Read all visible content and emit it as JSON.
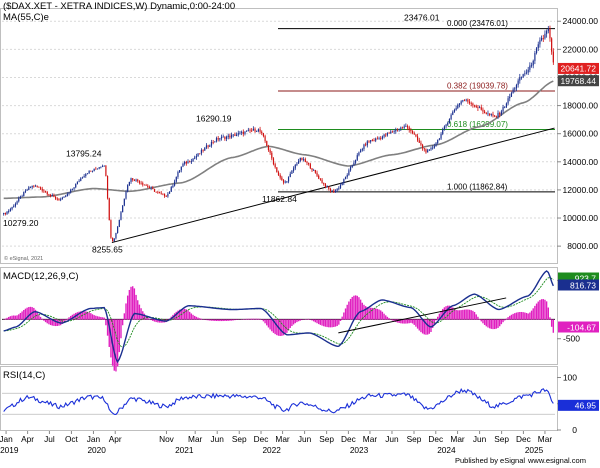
{
  "header": {
    "title": "($DAX.XET - XETRA INDICES,W) Dynamic,0:00-24:00",
    "ma_label": "MA(55,C)e"
  },
  "chart_data": [
    {
      "type": "candlestick",
      "panel": "price",
      "ylim": [
        6800,
        24800
      ],
      "yticks": [
        "8000.00",
        "10000.00",
        "12000.00",
        "14000.00",
        "16000.00",
        "18000.00",
        "20000.00",
        "22000.00",
        "24000.00"
      ],
      "ytick_values": [
        8000,
        10000,
        12000,
        14000,
        16000,
        18000,
        20000,
        22000,
        24000
      ],
      "price_anchors": [
        {
          "date": "2018-12-20",
          "value": 10279
        },
        {
          "date": "2019-04-25",
          "value": 12300
        },
        {
          "date": "2019-08-15",
          "value": 11300
        },
        {
          "date": "2019-12-15",
          "value": 13300
        },
        {
          "date": "2020-02-15",
          "value": 13795
        },
        {
          "date": "2020-03-18",
          "value": 8255
        },
        {
          "date": "2020-06-05",
          "value": 12800
        },
        {
          "date": "2020-10-30",
          "value": 11600
        },
        {
          "date": "2021-01-15",
          "value": 13900
        },
        {
          "date": "2021-06-15",
          "value": 15700
        },
        {
          "date": "2021-11-18",
          "value": 16290
        },
        {
          "date": "2022-03-07",
          "value": 12500
        },
        {
          "date": "2022-05-15",
          "value": 14200
        },
        {
          "date": "2022-09-29",
          "value": 11862
        },
        {
          "date": "2023-03-01",
          "value": 15500
        },
        {
          "date": "2023-07-31",
          "value": 16500
        },
        {
          "date": "2023-10-27",
          "value": 14700
        },
        {
          "date": "2024-03-25",
          "value": 18400
        },
        {
          "date": "2024-08-05",
          "value": 17200
        },
        {
          "date": "2024-12-15",
          "value": 20400
        },
        {
          "date": "2025-02-20",
          "value": 22800
        },
        {
          "date": "2025-03-13",
          "value": 23476
        },
        {
          "date": "2025-04-10",
          "value": 20641
        }
      ],
      "ma_anchors": [
        {
          "date": "2018-12-20",
          "value": 11400
        },
        {
          "date": "2019-06-01",
          "value": 11500
        },
        {
          "date": "2020-01-01",
          "value": 12100
        },
        {
          "date": "2020-06-01",
          "value": 11900
        },
        {
          "date": "2021-01-01",
          "value": 12500
        },
        {
          "date": "2021-08-01",
          "value": 14300
        },
        {
          "date": "2022-01-01",
          "value": 15100
        },
        {
          "date": "2022-06-01",
          "value": 14500
        },
        {
          "date": "2022-12-01",
          "value": 13700
        },
        {
          "date": "2023-06-01",
          "value": 14500
        },
        {
          "date": "2023-12-01",
          "value": 15200
        },
        {
          "date": "2024-06-01",
          "value": 16500
        },
        {
          "date": "2024-12-01",
          "value": 18200
        },
        {
          "date": "2025-04-10",
          "value": 19768
        }
      ],
      "annotations": [
        {
          "label": "10279.20",
          "value": 10279
        },
        {
          "label": "13795.24",
          "value": 13795
        },
        {
          "label": "8255.65",
          "value": 8255
        },
        {
          "label": "16290.19",
          "value": 16290
        },
        {
          "label": "11862.84",
          "value": 11862
        },
        {
          "label": "23476.01",
          "value": 23476
        }
      ],
      "fib_levels": [
        {
          "label": "0.000 (23476.01)",
          "value": 23476.01,
          "color": "#000000"
        },
        {
          "label": "0.382 (19039.78)",
          "value": 19039.78,
          "color": "#8b1a1a"
        },
        {
          "label": "0.618 (16299.07)",
          "value": 16299.07,
          "color": "#1e8c1e"
        },
        {
          "label": "1.000 (11862.84)",
          "value": 11862.84,
          "color": "#000000"
        }
      ],
      "trendline": {
        "start": {
          "date": "2020-03-18",
          "value": 8255
        },
        "end": {
          "date": "2025-04-10",
          "value": 16400
        }
      },
      "last_price_badge": {
        "label": "20641.72",
        "value": 20641.72,
        "color": "#e02020"
      },
      "ma_badge": {
        "label": "19768.44",
        "value": 19768.44,
        "color": "#444444"
      },
      "watermark": "© eSignal, 2021"
    },
    {
      "type": "line",
      "panel": "macd",
      "title": "MACD(12,26,9,C)",
      "ylim": [
        -1150,
        1320
      ],
      "yticks": [
        "1000",
        "-500"
      ],
      "ytick_values": [
        1000,
        -500
      ],
      "zero_level": 0,
      "macd_anchors": [
        {
          "date": "2018-12-20",
          "value": -300
        },
        {
          "date": "2019-02-10",
          "value": -200
        },
        {
          "date": "2019-05-01",
          "value": 200
        },
        {
          "date": "2019-08-20",
          "value": -100
        },
        {
          "date": "2019-12-20",
          "value": 280
        },
        {
          "date": "2020-02-15",
          "value": 300
        },
        {
          "date": "2020-04-10",
          "value": -1100
        },
        {
          "date": "2020-06-20",
          "value": 150
        },
        {
          "date": "2020-10-30",
          "value": -50
        },
        {
          "date": "2021-02-01",
          "value": 350
        },
        {
          "date": "2021-08-01",
          "value": 250
        },
        {
          "date": "2021-12-01",
          "value": 280
        },
        {
          "date": "2022-03-20",
          "value": -400
        },
        {
          "date": "2022-06-20",
          "value": -350
        },
        {
          "date": "2022-10-20",
          "value": -700
        },
        {
          "date": "2023-01-20",
          "value": 200
        },
        {
          "date": "2023-04-20",
          "value": 500
        },
        {
          "date": "2023-08-20",
          "value": 300
        },
        {
          "date": "2023-11-10",
          "value": -200
        },
        {
          "date": "2024-02-10",
          "value": 350
        },
        {
          "date": "2024-05-10",
          "value": 650
        },
        {
          "date": "2024-08-20",
          "value": 250
        },
        {
          "date": "2024-12-20",
          "value": 600
        },
        {
          "date": "2025-03-10",
          "value": 1250
        },
        {
          "date": "2025-04-10",
          "value": 816
        }
      ],
      "trendline": {
        "start": {
          "date": "2022-10-20",
          "value": -350
        },
        "end": {
          "date": "2024-09-20",
          "value": 550
        }
      },
      "badges": [
        {
          "label": "923.7",
          "value": 923.7,
          "color": "#1e8c1e"
        },
        {
          "label": "816.73",
          "value": 816.73,
          "color": "#1a2f8f"
        },
        {
          "label": "-104.67",
          "value": -104.67,
          "color": "#e020c0"
        }
      ]
    },
    {
      "type": "line",
      "panel": "rsi",
      "title": "RSI(14,C)",
      "ylim": [
        0,
        120
      ],
      "yticks": [
        "100",
        "50",
        "0"
      ],
      "ytick_values": [
        100,
        50,
        0
      ],
      "reference_levels": [
        30,
        70
      ],
      "rsi_anchors": [
        {
          "date": "2018-12-20",
          "value": 38
        },
        {
          "date": "2019-04-01",
          "value": 62
        },
        {
          "date": "2019-08-15",
          "value": 45
        },
        {
          "date": "2019-12-15",
          "value": 63
        },
        {
          "date": "2020-02-15",
          "value": 60
        },
        {
          "date": "2020-03-20",
          "value": 28
        },
        {
          "date": "2020-06-10",
          "value": 60
        },
        {
          "date": "2020-10-30",
          "value": 45
        },
        {
          "date": "2021-01-15",
          "value": 62
        },
        {
          "date": "2021-06-15",
          "value": 65
        },
        {
          "date": "2021-11-18",
          "value": 63
        },
        {
          "date": "2022-03-07",
          "value": 38
        },
        {
          "date": "2022-05-15",
          "value": 52
        },
        {
          "date": "2022-09-29",
          "value": 35
        },
        {
          "date": "2023-03-01",
          "value": 65
        },
        {
          "date": "2023-07-31",
          "value": 67
        },
        {
          "date": "2023-10-27",
          "value": 40
        },
        {
          "date": "2024-03-25",
          "value": 76
        },
        {
          "date": "2024-08-05",
          "value": 45
        },
        {
          "date": "2024-12-15",
          "value": 66
        },
        {
          "date": "2025-03-05",
          "value": 76
        },
        {
          "date": "2025-04-10",
          "value": 46.95
        }
      ],
      "badge": {
        "label": "46.95",
        "value": 46.95,
        "color": "#1a2fd8"
      }
    }
  ],
  "x_axis": {
    "month_ticks": [
      {
        "label": "Jan",
        "date": "2019-01-01"
      },
      {
        "label": "Apr",
        "date": "2019-04-01"
      },
      {
        "label": "Jul",
        "date": "2019-07-01"
      },
      {
        "label": "Oct",
        "date": "2019-10-01"
      },
      {
        "label": "Jan",
        "date": "2020-01-01"
      },
      {
        "label": "Apr",
        "date": "2020-04-01"
      },
      {
        "label": "Nov",
        "date": "2020-11-01"
      },
      {
        "label": "Mar",
        "date": "2021-03-01"
      },
      {
        "label": "Jun",
        "date": "2021-06-01"
      },
      {
        "label": "Sep",
        "date": "2021-09-01"
      },
      {
        "label": "Dec",
        "date": "2021-12-01"
      },
      {
        "label": "Mar",
        "date": "2022-03-01"
      },
      {
        "label": "Jun",
        "date": "2022-06-01"
      },
      {
        "label": "Sep",
        "date": "2022-09-01"
      },
      {
        "label": "Dec",
        "date": "2022-12-01"
      },
      {
        "label": "Mar",
        "date": "2023-03-01"
      },
      {
        "label": "Jun",
        "date": "2023-06-01"
      },
      {
        "label": "Sep",
        "date": "2023-09-01"
      },
      {
        "label": "Dec",
        "date": "2023-12-01"
      },
      {
        "label": "Mar",
        "date": "2024-03-01"
      },
      {
        "label": "Jun",
        "date": "2024-06-01"
      },
      {
        "label": "Sep",
        "date": "2024-09-01"
      },
      {
        "label": "Dec",
        "date": "2024-12-01"
      },
      {
        "label": "Mar",
        "date": "2025-03-01"
      }
    ],
    "year_ticks": [
      {
        "label": "2019",
        "date": "2019-01-01"
      },
      {
        "label": "2020",
        "date": "2020-01-01"
      },
      {
        "label": "2021",
        "date": "2021-01-01"
      },
      {
        "label": "2022",
        "date": "2022-01-01"
      },
      {
        "label": "2023",
        "date": "2023-01-01"
      },
      {
        "label": "2024",
        "date": "2024-01-01"
      },
      {
        "label": "2025",
        "date": "2025-01-01"
      }
    ]
  },
  "footer": {
    "text": "Published by eSignal",
    "link": "www.esignal.com"
  }
}
